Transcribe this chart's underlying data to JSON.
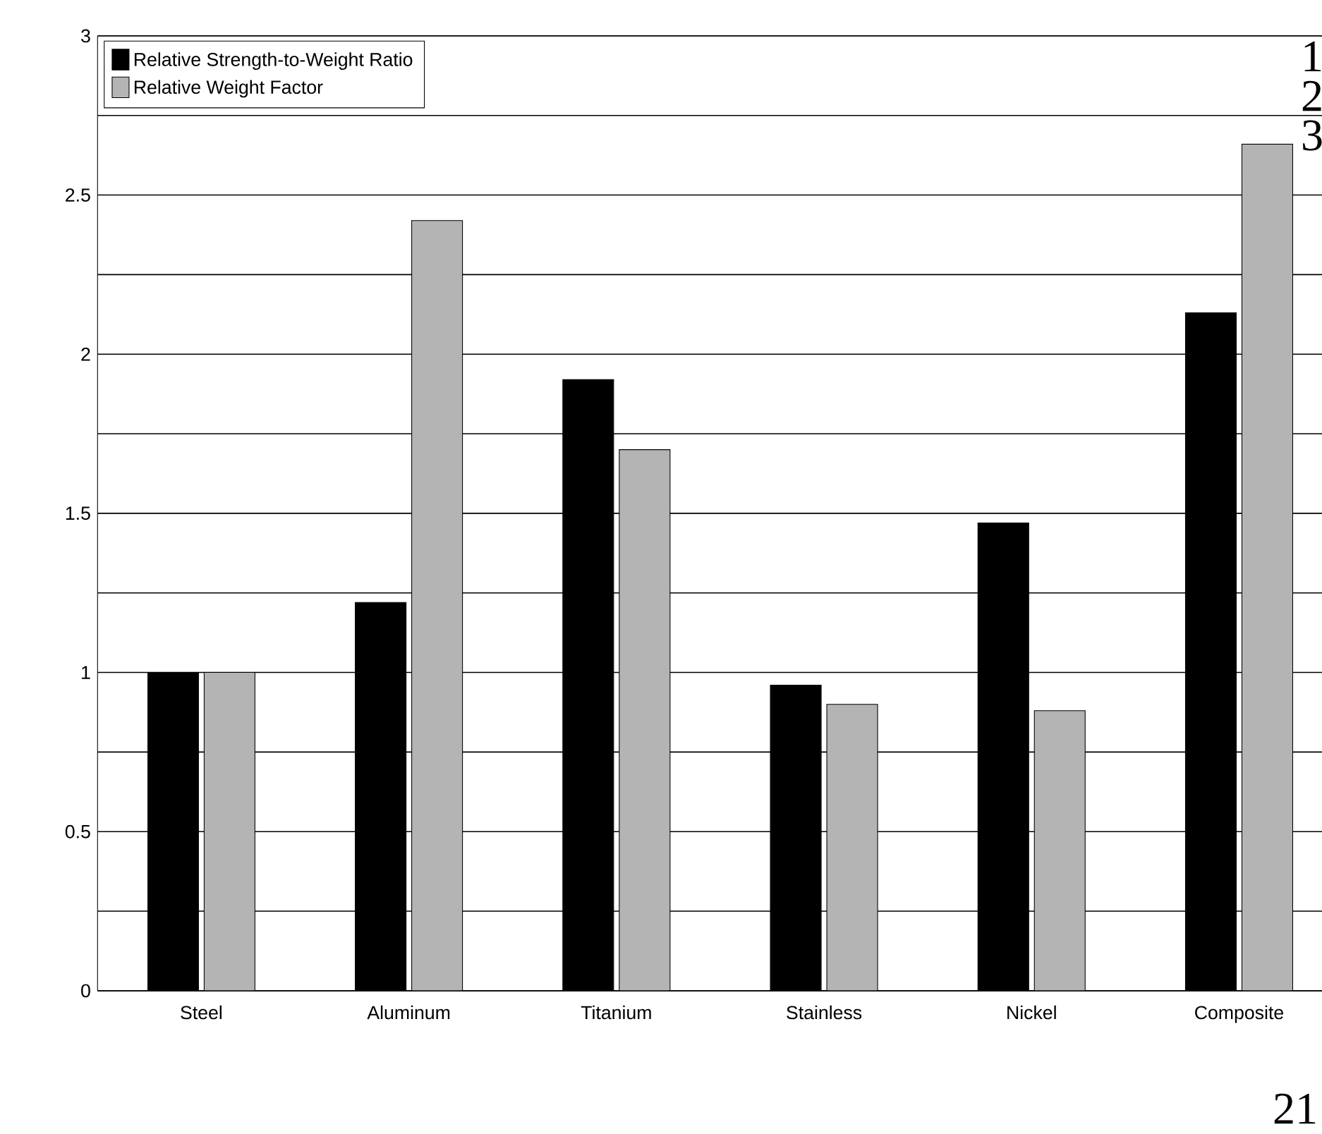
{
  "chart_data": {
    "type": "bar",
    "categories": [
      "Steel",
      "Aluminum",
      "Titanium",
      "Stainless",
      "Nickel",
      "Composite"
    ],
    "series": [
      {
        "name": "Relative Strength-to-Weight Ratio",
        "color": "#000000",
        "values": [
          1.0,
          1.22,
          1.92,
          0.96,
          1.47,
          2.13
        ]
      },
      {
        "name": "Relative Weight Factor",
        "color": "#b4b4b4",
        "values": [
          1.0,
          2.42,
          1.7,
          0.9,
          0.88,
          2.66
        ]
      }
    ],
    "ylim": [
      0,
      3
    ],
    "yticks": [
      0,
      {
        "value": 0.25,
        "label": null
      },
      0.5,
      {
        "value": 0.75,
        "label": null
      },
      1,
      {
        "value": 1.25,
        "label": null
      },
      1.5,
      {
        "value": 1.75,
        "label": null
      },
      2,
      {
        "value": 2.25,
        "label": null
      },
      2.5,
      {
        "value": 2.75,
        "label": null
      },
      3
    ],
    "grid": "y",
    "legend": "top left",
    "annotations": [
      "1",
      "2",
      "3",
      "21"
    ]
  }
}
